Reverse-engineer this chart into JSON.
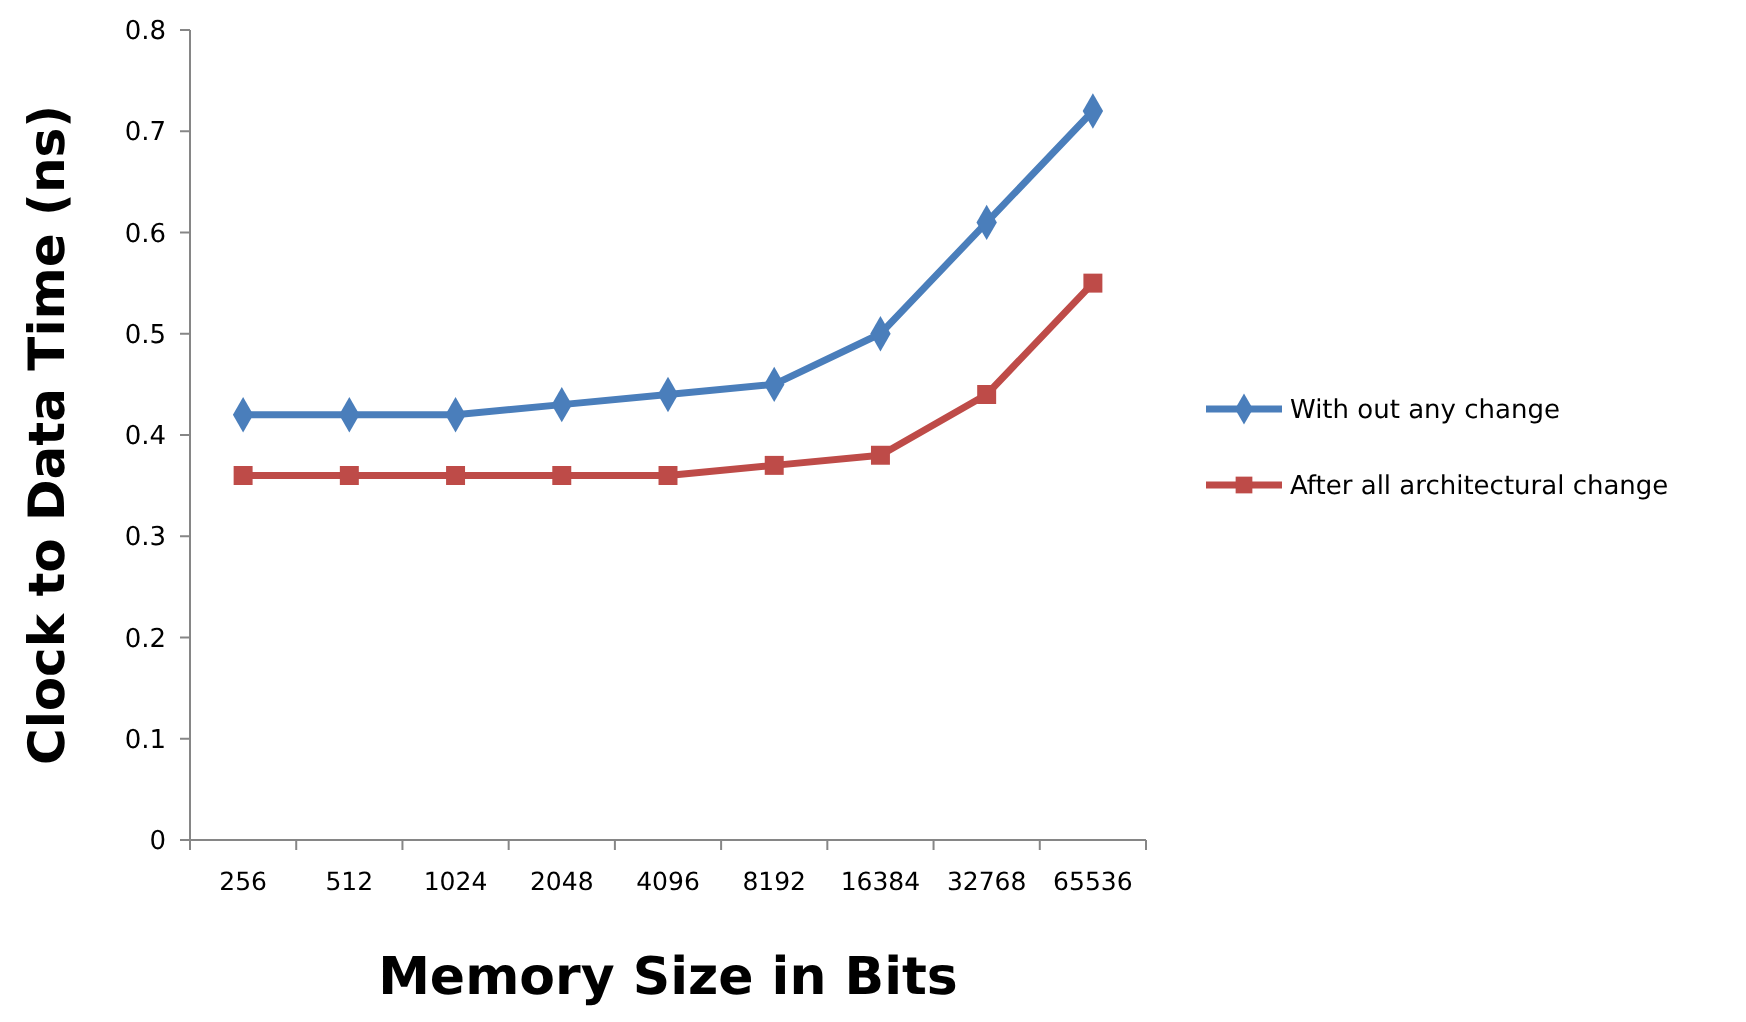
{
  "chart_data": {
    "type": "line",
    "xlabel": "Memory Size in Bits",
    "ylabel": "Clock to Data Time (ns)",
    "categories": [
      "256",
      "512",
      "1024",
      "2048",
      "4096",
      "8192",
      "16384",
      "32768",
      "65536"
    ],
    "series": [
      {
        "name": "With out any change",
        "color": "#4a7ebb",
        "marker": "diamond",
        "values": [
          0.42,
          0.42,
          0.42,
          0.43,
          0.44,
          0.45,
          0.5,
          0.61,
          0.72
        ]
      },
      {
        "name": "After all architectural change",
        "color": "#be4b48",
        "marker": "square",
        "values": [
          0.36,
          0.36,
          0.36,
          0.36,
          0.36,
          0.37,
          0.38,
          0.44,
          0.55
        ]
      }
    ],
    "ylim": [
      0,
      0.8
    ],
    "yticks": [
      0,
      0.1,
      0.2,
      0.3,
      0.4,
      0.5,
      0.6,
      0.7,
      0.8
    ],
    "grid": false,
    "legend": "right",
    "line_style": "solid"
  }
}
